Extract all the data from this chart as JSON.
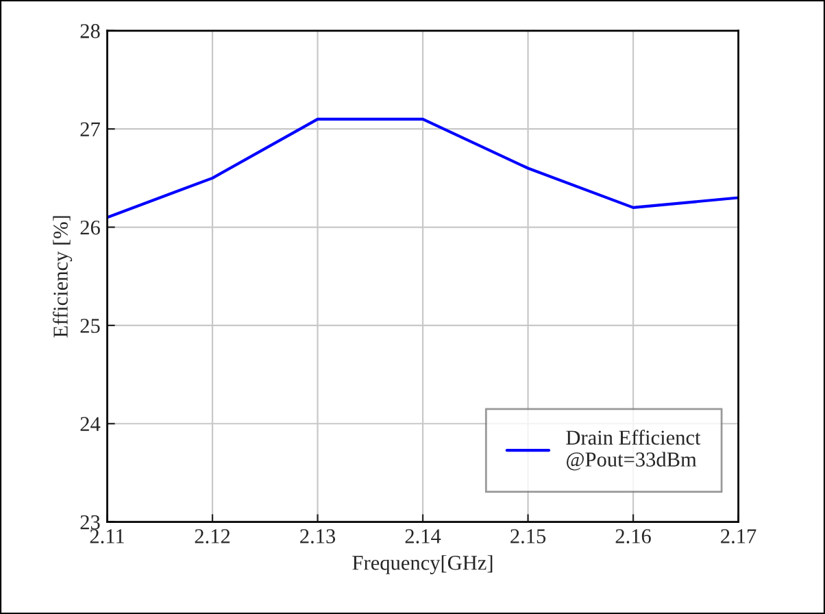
{
  "chart_data": {
    "type": "line",
    "xlabel": "Frequency[GHz]",
    "ylabel": "Efficiency [%]",
    "x": [
      2.11,
      2.12,
      2.13,
      2.14,
      2.15,
      2.16,
      2.17
    ],
    "series": [
      {
        "name": "Drain Efficienct\n@Pout=33dBm",
        "color": "#0000ff",
        "values": [
          26.1,
          26.5,
          27.1,
          27.1,
          26.6,
          26.2,
          26.3
        ]
      }
    ],
    "xlim": [
      2.11,
      2.17
    ],
    "xticks": [
      2.11,
      2.12,
      2.13,
      2.14,
      2.15,
      2.16,
      2.17
    ],
    "ylim": [
      23,
      28
    ],
    "yticks": [
      23,
      24,
      25,
      26,
      27,
      28
    ],
    "grid": true,
    "legend": "bottom right",
    "marker": "none",
    "line_style": "solid"
  }
}
